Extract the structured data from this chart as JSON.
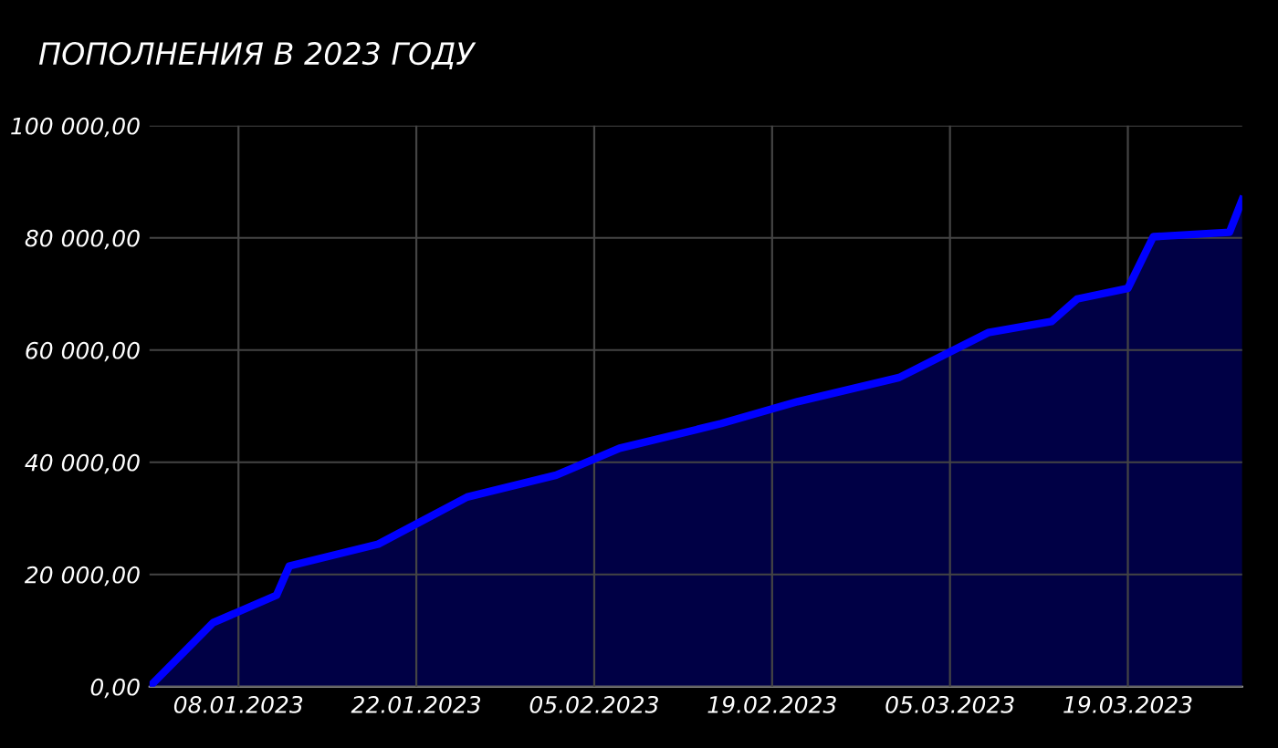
{
  "chart_data": {
    "type": "area",
    "title": "ПОПОЛНЕНИЯ В 2023 ГОДУ",
    "x": [
      "2023-01-01",
      "2023-01-06",
      "2023-01-11",
      "2023-01-12",
      "2023-01-19",
      "2023-01-26",
      "2023-02-02",
      "2023-02-07",
      "2023-02-15",
      "2023-02-21",
      "2023-03-01",
      "2023-03-08",
      "2023-03-13",
      "2023-03-15",
      "2023-03-19",
      "2023-03-21",
      "2023-03-27",
      "2023-03-28"
    ],
    "series": [
      {
        "color": "#0000ff",
        "values": [
          0,
          11400,
          16300,
          21500,
          25400,
          33800,
          37700,
          42500,
          46900,
          50800,
          55100,
          63100,
          65100,
          69100,
          71000,
          80200,
          81000,
          86800
        ]
      }
    ],
    "xlim": [
      "2023-01-01",
      "2023-03-28"
    ],
    "xticks": [
      {
        "value": "2023-01-08",
        "label": "08.01.2023"
      },
      {
        "value": "2023-01-22",
        "label": "22.01.2023"
      },
      {
        "value": "2023-02-05",
        "label": "05.02.2023"
      },
      {
        "value": "2023-02-19",
        "label": "19.02.2023"
      },
      {
        "value": "2023-03-05",
        "label": "05.03.2023"
      },
      {
        "value": "2023-03-19",
        "label": "19.03.2023"
      }
    ],
    "ylim": [
      0,
      100000
    ],
    "yticks": [
      {
        "value": 0,
        "label": "0,00"
      },
      {
        "value": 20000,
        "label": "20 000,00"
      },
      {
        "value": 40000,
        "label": "40 000,00"
      },
      {
        "value": 60000,
        "label": "60 000,00"
      },
      {
        "value": 80000,
        "label": "80 000,00"
      },
      {
        "value": 100000,
        "label": "100 000,00"
      }
    ],
    "grid": true
  }
}
